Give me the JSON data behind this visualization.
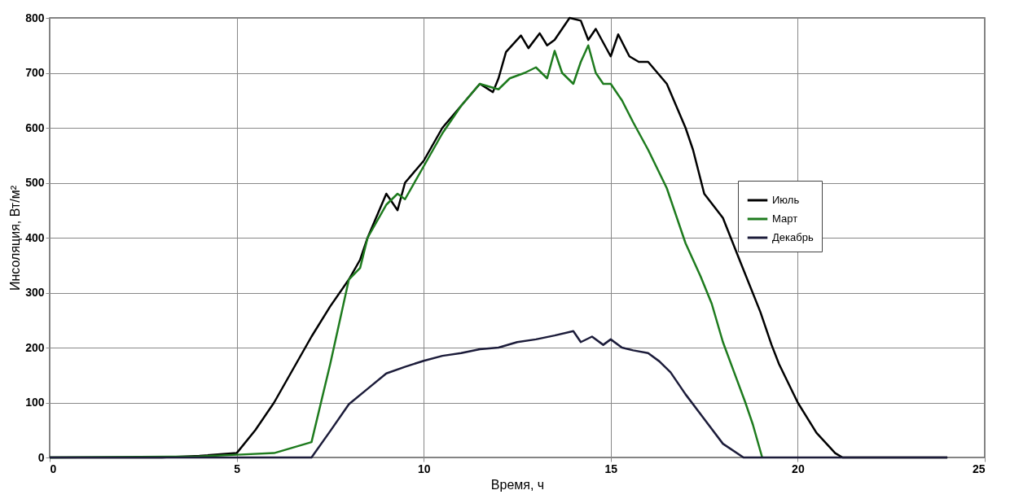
{
  "chart_data": {
    "type": "line",
    "xlabel": "Время, ч",
    "ylabel": "Инсоляция, Вт/м²",
    "xlim": [
      0,
      25
    ],
    "xticks": [
      0,
      5,
      10,
      15,
      20,
      25
    ],
    "ylim": [
      0,
      800
    ],
    "yticks": [
      0,
      100,
      200,
      300,
      400,
      500,
      600,
      700,
      800
    ],
    "grid": true,
    "legend": "top right",
    "marker": "none",
    "line_style": "solid",
    "series": [
      {
        "name": "Июль",
        "color": "#000000",
        "x": [
          0,
          3,
          4,
          5,
          5.5,
          6,
          6.5,
          7,
          7.5,
          8,
          8.3,
          8.5,
          9,
          9.3,
          9.5,
          10,
          10.5,
          11,
          11.5,
          11.85,
          12,
          12.2,
          12.6,
          12.8,
          13.1,
          13.3,
          13.5,
          13.9,
          14.2,
          14.4,
          14.6,
          15,
          15.2,
          15.5,
          15.75,
          16,
          16.5,
          17,
          17.2,
          17.5,
          18,
          18.5,
          19,
          19.3,
          19.5,
          20,
          20.5,
          21,
          21.2,
          24
        ],
        "values": [
          0,
          0,
          3,
          8,
          50,
          100,
          160,
          220,
          275,
          324,
          360,
          400,
          480,
          450,
          500,
          540,
          600,
          640,
          680,
          665,
          690,
          738,
          768,
          745,
          772,
          750,
          760,
          800,
          795,
          760,
          780,
          730,
          770,
          730,
          720,
          720,
          680,
          600,
          560,
          480,
          436,
          350,
          265,
          205,
          170,
          100,
          45,
          8,
          0,
          0
        ]
      },
      {
        "name": "Март",
        "color": "#1e7b1e",
        "x": [
          0,
          4,
          5,
          6,
          6.5,
          7,
          7.5,
          8,
          8.3,
          8.5,
          9,
          9.3,
          9.5,
          10,
          10.5,
          11,
          11.5,
          12,
          12.3,
          12.7,
          13,
          13.3,
          13.5,
          13.7,
          14,
          14.2,
          14.4,
          14.6,
          14.8,
          15,
          15.3,
          15.6,
          16,
          16.5,
          17,
          17.4,
          17.7,
          18,
          18.3,
          18.6,
          18.8,
          19.05
        ],
        "values": [
          0,
          2,
          5,
          8,
          18,
          28,
          170,
          324,
          345,
          400,
          460,
          480,
          470,
          530,
          590,
          640,
          680,
          670,
          690,
          700,
          710,
          690,
          740,
          700,
          680,
          720,
          750,
          700,
          680,
          680,
          650,
          610,
          560,
          490,
          390,
          330,
          280,
          210,
          155,
          100,
          60,
          0
        ]
      },
      {
        "name": "Декабрь",
        "color": "#1c1c3a",
        "x": [
          0,
          7,
          7.5,
          8,
          8.5,
          9,
          9.5,
          10,
          10.5,
          11,
          11.5,
          12,
          12.5,
          13,
          13.5,
          14,
          14.2,
          14.5,
          14.8,
          15,
          15.3,
          15.6,
          16,
          16.3,
          16.6,
          17,
          17.5,
          18,
          18.55,
          24
        ],
        "values": [
          0,
          0,
          48,
          97,
          125,
          153,
          165,
          176,
          185,
          190,
          197,
          200,
          210,
          215,
          222,
          230,
          210,
          220,
          205,
          215,
          200,
          195,
          190,
          175,
          155,
          115,
          70,
          25,
          0,
          0
        ]
      }
    ]
  }
}
